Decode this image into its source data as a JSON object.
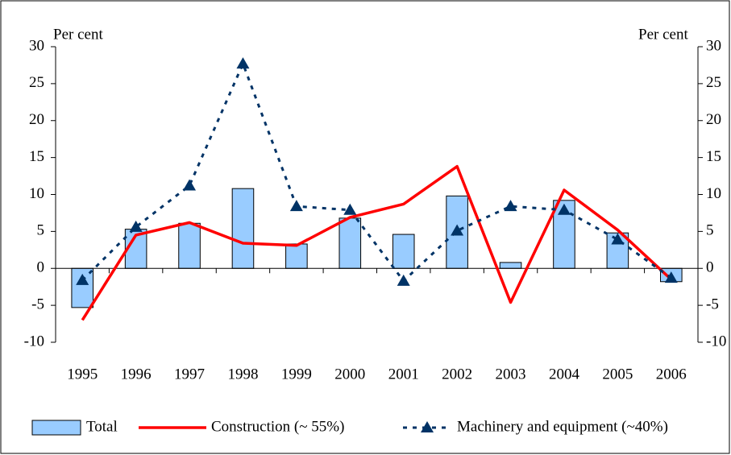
{
  "chart_data": {
    "type": "bar-line",
    "y_label": "Per cent",
    "y2_label": "Per cent",
    "categories": [
      "1995",
      "1996",
      "1997",
      "1998",
      "1999",
      "2000",
      "2001",
      "2002",
      "2003",
      "2004",
      "2005",
      "2006"
    ],
    "series": [
      {
        "name": "Total",
        "type": "bar",
        "color": "#99ccff",
        "values": [
          -5.3,
          5.3,
          6.1,
          10.8,
          3.3,
          6.8,
          4.6,
          9.8,
          0.8,
          9.2,
          4.8,
          -1.8
        ]
      },
      {
        "name": "Construction (~ 55%)",
        "type": "line",
        "color": "#ff0000",
        "values": [
          -7.0,
          4.5,
          6.2,
          3.4,
          3.1,
          6.9,
          8.7,
          13.8,
          -4.6,
          10.6,
          5.2,
          -1.5
        ]
      },
      {
        "name": "Machinery and equipment (~40%)",
        "type": "dashed-line",
        "color": "#003366",
        "values": [
          -1.6,
          5.6,
          11.2,
          27.7,
          8.4,
          7.9,
          -1.7,
          5.1,
          8.4,
          7.9,
          3.9,
          -1.3
        ]
      }
    ],
    "ylim": [
      -10,
      30
    ],
    "yticks": [
      -10,
      -5,
      0,
      5,
      10,
      15,
      20,
      25,
      30
    ],
    "y2lim": [
      -10,
      30
    ],
    "y2ticks": [
      -10,
      -5,
      0,
      5,
      10,
      15,
      20,
      25,
      30
    ]
  }
}
